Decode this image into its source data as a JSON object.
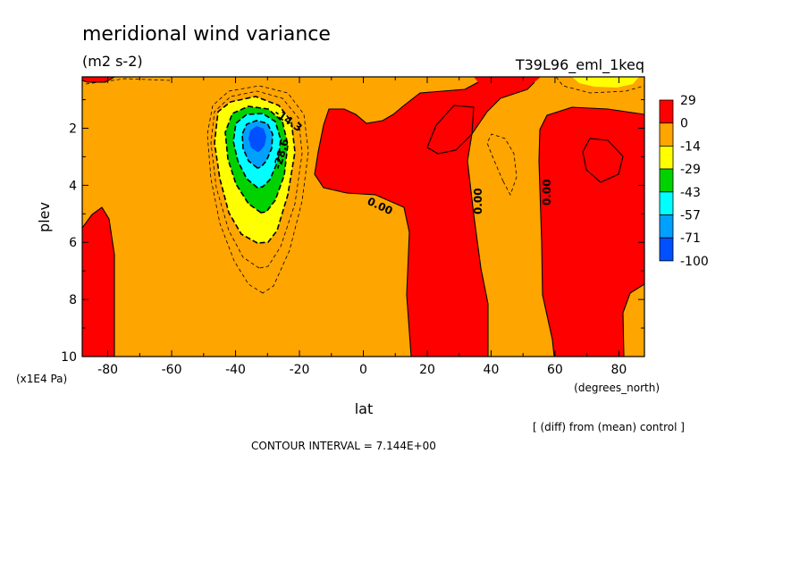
{
  "chart_data": {
    "type": "contour",
    "title": "meridional wind variance",
    "units": "(m2 s-2)",
    "run_label": "T39L96_eml_1keq",
    "xlabel": "lat",
    "xunit": "(degrees_north)",
    "ylabel": "plev",
    "yunit": "(x1E4 Pa)",
    "x_ticks": [
      -80,
      -60,
      -40,
      -20,
      0,
      20,
      40,
      60,
      80
    ],
    "y_ticks": [
      2,
      4,
      6,
      8,
      10
    ],
    "xlim": [
      -88,
      88
    ],
    "ylim": [
      10,
      0.2
    ],
    "comparison": "[ (diff) from (mean) control ]",
    "contour_interval": "CONTOUR INTERVAL = 7.144E+00",
    "contour_labels": [
      "-14.3",
      "-28.6",
      "0.00",
      "0.00",
      "0.00"
    ],
    "colorbar": {
      "labels": [
        "29",
        "0",
        "-14",
        "-29",
        "-43",
        "-57",
        "-71",
        "-100"
      ],
      "colors": [
        "#ff0000",
        "#ffa500",
        "#ffff00",
        "#00d200",
        "#00ffff",
        "#00a0ff",
        "#0050ff"
      ]
    },
    "fill_colors": {
      "positive": "#ff0000",
      "near_zero": "#ffa500",
      "band_14_29": "#ffff00",
      "band_29_43": "#00d200",
      "band_43_57": "#00ffff",
      "band_57_71": "#00a0ff",
      "band_71_100": "#0050ff"
    }
  }
}
